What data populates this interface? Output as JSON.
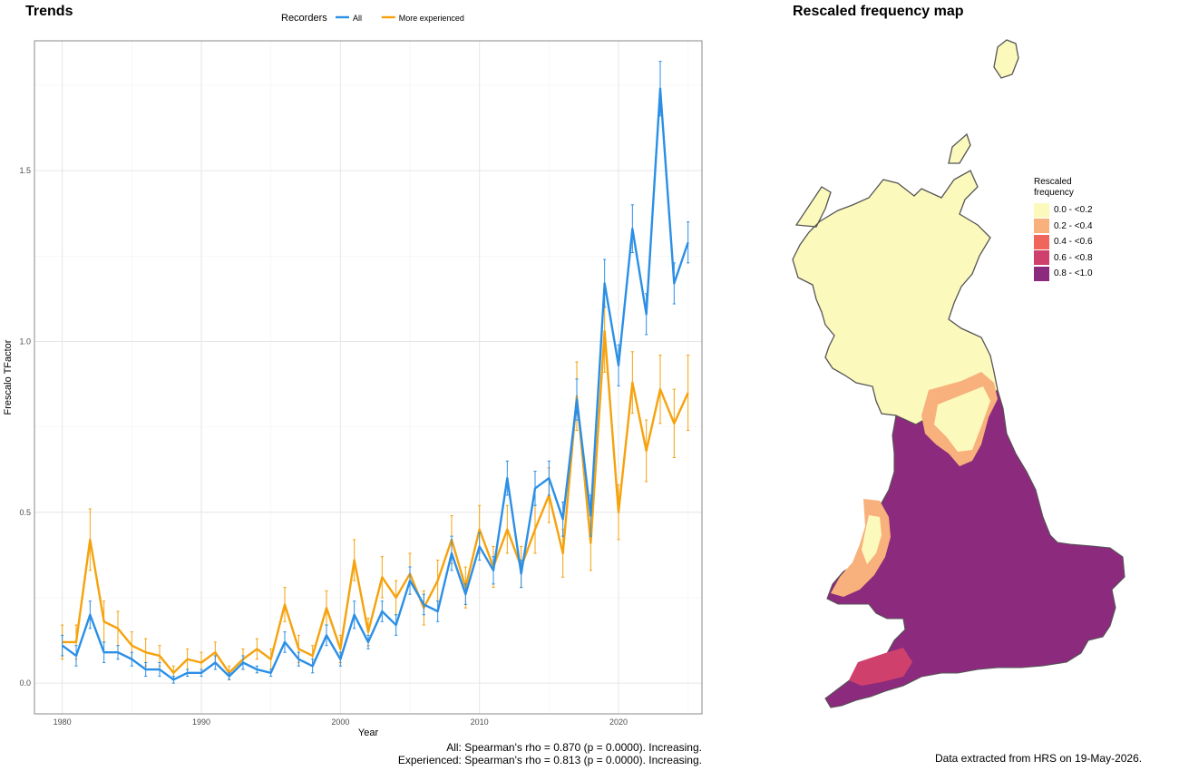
{
  "trends": {
    "title": "Trends",
    "legend_title": "Recorders",
    "rho_all": "All: Spearman's rho = 0.870 (p = 0.0000). Increasing.",
    "rho_exp": "Experienced: Spearman's rho = 0.813 (p = 0.0000). Increasing."
  },
  "map": {
    "title": "Rescaled frequency map",
    "legend_title_1": "Rescaled",
    "legend_title_2": "frequency",
    "legend": [
      {
        "label": "0.0 - <0.2",
        "color": "#fcf9bc"
      },
      {
        "label": "0.2 - <0.4",
        "color": "#f8b17c"
      },
      {
        "label": "0.4 - <0.6",
        "color": "#f1665c"
      },
      {
        "label": "0.6 - <0.8",
        "color": "#d0406c"
      },
      {
        "label": "0.8 - <1.0",
        "color": "#8c2a7d"
      }
    ],
    "note": "Data extracted from HRS on 19-May-2026."
  },
  "chart_data": {
    "type": "line",
    "xlabel": "Year",
    "ylabel": "Frescalo TFactor",
    "xlim": [
      1978,
      2026
    ],
    "ylim": [
      -0.09,
      1.88
    ],
    "x_ticks": [
      1980,
      1990,
      2000,
      2010,
      2020
    ],
    "y_ticks": [
      0.0,
      0.5,
      1.0,
      1.5
    ],
    "y_tick_labels": [
      "0.0",
      "0.5",
      "1.0",
      "1.5"
    ],
    "grid": true,
    "legend_position": "top",
    "x": [
      1980,
      1981,
      1982,
      1983,
      1984,
      1985,
      1986,
      1987,
      1988,
      1989,
      1990,
      1991,
      1992,
      1993,
      1994,
      1995,
      1996,
      1997,
      1998,
      1999,
      2000,
      2001,
      2002,
      2003,
      2004,
      2005,
      2006,
      2007,
      2008,
      2009,
      2010,
      2011,
      2012,
      2013,
      2014,
      2015,
      2016,
      2017,
      2018,
      2019,
      2020,
      2021,
      2022,
      2023,
      2024,
      2025
    ],
    "series": [
      {
        "name": "All",
        "color": "#2b8fe6",
        "values": [
          0.11,
          0.08,
          0.2,
          0.09,
          0.09,
          0.07,
          0.04,
          0.04,
          0.01,
          0.03,
          0.03,
          0.06,
          0.02,
          0.06,
          0.04,
          0.03,
          0.12,
          0.07,
          0.05,
          0.14,
          0.07,
          0.2,
          0.12,
          0.21,
          0.17,
          0.3,
          0.23,
          0.21,
          0.38,
          0.26,
          0.4,
          0.33,
          0.6,
          0.32,
          0.57,
          0.6,
          0.48,
          0.83,
          0.49,
          1.17,
          0.93,
          1.33,
          1.08,
          1.74,
          1.17,
          1.29
        ],
        "errors": [
          0.03,
          0.03,
          0.04,
          0.03,
          0.02,
          0.02,
          0.02,
          0.02,
          0.01,
          0.01,
          0.01,
          0.02,
          0.01,
          0.02,
          0.01,
          0.01,
          0.03,
          0.02,
          0.02,
          0.03,
          0.02,
          0.04,
          0.02,
          0.03,
          0.03,
          0.04,
          0.03,
          0.03,
          0.05,
          0.03,
          0.04,
          0.04,
          0.05,
          0.04,
          0.05,
          0.05,
          0.05,
          0.06,
          0.06,
          0.07,
          0.06,
          0.07,
          0.06,
          0.08,
          0.06,
          0.06
        ]
      },
      {
        "name": "More experienced",
        "color": "#f5a20d",
        "values": [
          0.12,
          0.12,
          0.42,
          0.18,
          0.16,
          0.11,
          0.09,
          0.08,
          0.03,
          0.07,
          0.06,
          0.09,
          0.03,
          0.07,
          0.1,
          0.07,
          0.23,
          0.1,
          0.08,
          0.22,
          0.1,
          0.36,
          0.15,
          0.31,
          0.25,
          0.32,
          0.22,
          0.3,
          0.42,
          0.28,
          0.45,
          0.34,
          0.45,
          0.34,
          0.45,
          0.55,
          0.38,
          0.84,
          0.41,
          1.03,
          0.5,
          0.88,
          0.68,
          0.86,
          0.76,
          0.85
        ],
        "errors": [
          0.05,
          0.05,
          0.09,
          0.06,
          0.05,
          0.04,
          0.04,
          0.03,
          0.02,
          0.03,
          0.03,
          0.03,
          0.02,
          0.03,
          0.03,
          0.03,
          0.05,
          0.04,
          0.03,
          0.05,
          0.04,
          0.06,
          0.04,
          0.06,
          0.05,
          0.06,
          0.05,
          0.06,
          0.07,
          0.06,
          0.07,
          0.06,
          0.07,
          0.06,
          0.07,
          0.08,
          0.07,
          0.1,
          0.08,
          0.12,
          0.08,
          0.09,
          0.09,
          0.1,
          0.1,
          0.11
        ]
      }
    ]
  }
}
